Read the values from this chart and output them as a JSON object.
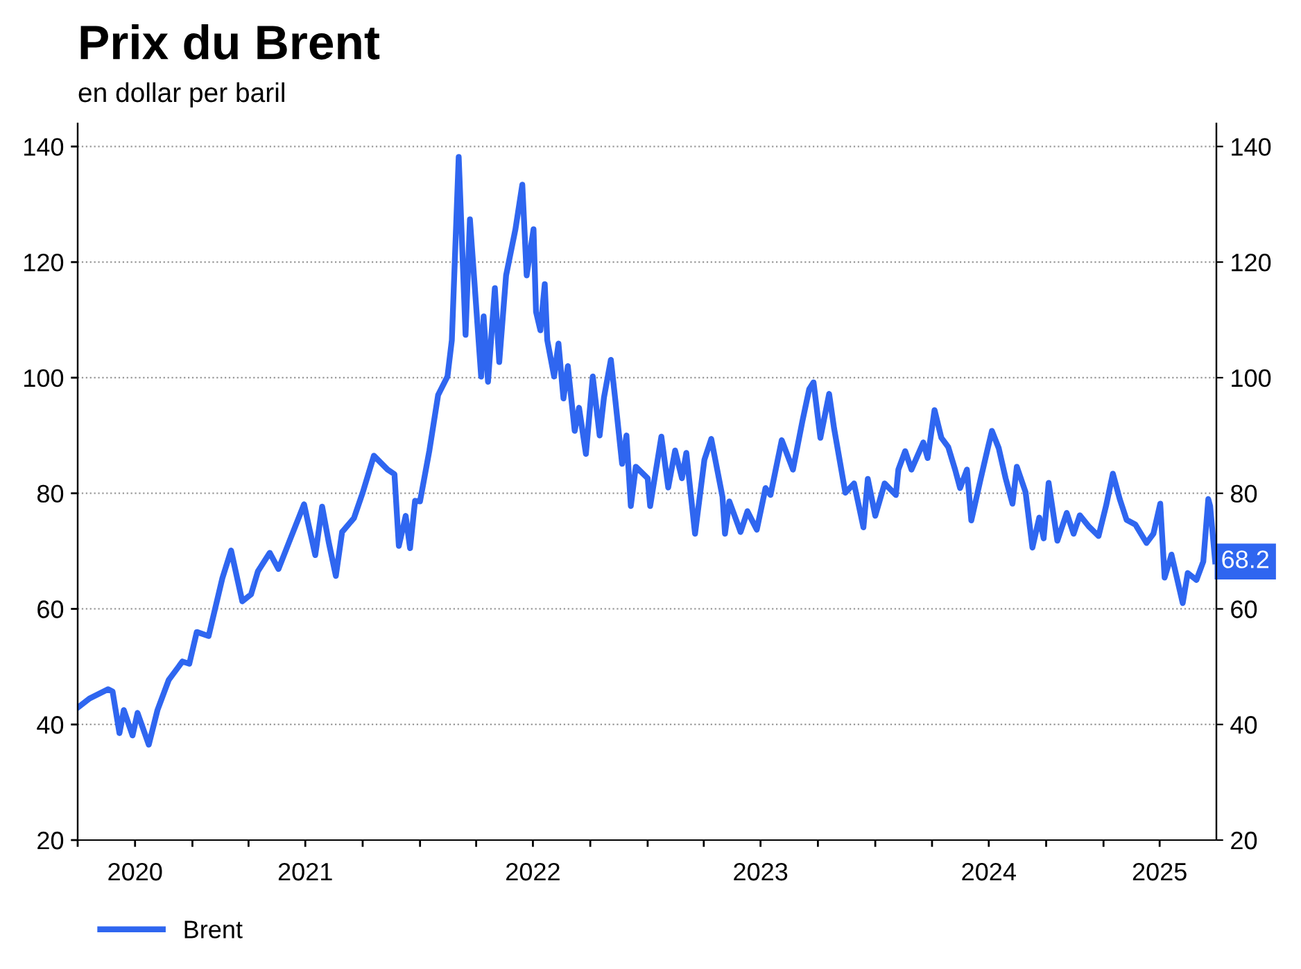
{
  "chart_data": {
    "type": "line",
    "title": "Prix du Brent",
    "subtitle": "en dollar per baril",
    "x": [
      "2020-07-01",
      "2020-07-20",
      "2020-08-19",
      "2020-08-26",
      "2020-09-06",
      "2020-09-13",
      "2020-09-27",
      "2020-10-05",
      "2020-10-23",
      "2020-11-06",
      "2020-11-24",
      "2020-12-16",
      "2020-12-27",
      "2021-01-08",
      "2021-01-27",
      "2021-02-18",
      "2021-03-04",
      "2021-03-22",
      "2021-04-05",
      "2021-04-16",
      "2021-05-05",
      "2021-05-19",
      "2021-06-07",
      "2021-06-29",
      "2021-07-17",
      "2021-07-28",
      "2021-08-08",
      "2021-08-19",
      "2021-08-29",
      "2021-09-17",
      "2021-10-01",
      "2021-10-19",
      "2021-11-10",
      "2021-11-21",
      "2021-11-28",
      "2021-12-09",
      "2021-12-16",
      "2021-12-24",
      "2022-01-01",
      "2022-01-16",
      "2022-01-30",
      "2022-02-14",
      "2022-02-21",
      "2022-03-04",
      "2022-03-15",
      "2022-03-22",
      "2022-03-29",
      "2022-04-09",
      "2022-04-13",
      "2022-04-20",
      "2022-05-01",
      "2022-05-08",
      "2022-05-19",
      "2022-06-03",
      "2022-06-14",
      "2022-06-21",
      "2022-07-02",
      "2022-07-06",
      "2022-07-13",
      "2022-07-20",
      "2022-07-24",
      "2022-08-04",
      "2022-08-11",
      "2022-08-19",
      "2022-08-26",
      "2022-09-06",
      "2022-09-13",
      "2022-09-24",
      "2022-10-05",
      "2022-10-16",
      "2022-10-23",
      "2022-11-03",
      "2022-11-10",
      "2022-11-21",
      "2022-11-28",
      "2022-12-05",
      "2022-12-13",
      "2023-01-01",
      "2023-01-05",
      "2023-01-23",
      "2023-02-03",
      "2023-02-14",
      "2023-02-25",
      "2023-03-04",
      "2023-03-18",
      "2023-04-02",
      "2023-04-13",
      "2023-05-01",
      "2023-05-05",
      "2023-05-12",
      "2023-05-30",
      "2023-06-10",
      "2023-06-25",
      "2023-07-09",
      "2023-07-17",
      "2023-08-04",
      "2023-08-22",
      "2023-09-06",
      "2023-09-17",
      "2023-09-24",
      "2023-10-05",
      "2023-10-19",
      "2023-10-27",
      "2023-11-14",
      "2023-11-28",
      "2023-12-13",
      "2023-12-20",
      "2024-01-01",
      "2024-01-16",
      "2024-02-03",
      "2024-02-07",
      "2024-02-18",
      "2024-02-28",
      "2024-03-18",
      "2024-03-25",
      "2024-04-05",
      "2024-04-16",
      "2024-04-27",
      "2024-05-08",
      "2024-05-16",
      "2024-05-27",
      "2024-06-03",
      "2024-06-18",
      "2024-06-29",
      "2024-07-06",
      "2024-07-17",
      "2024-07-28",
      "2024-08-08",
      "2024-08-15",
      "2024-08-29",
      "2024-09-09",
      "2024-09-20",
      "2024-09-27",
      "2024-10-05",
      "2024-10-19",
      "2024-11-03",
      "2024-11-14",
      "2024-11-24",
      "2024-12-09",
      "2024-12-24",
      "2025-01-05",
      "2025-01-16",
      "2025-01-27",
      "2025-02-07",
      "2025-02-21",
      "2025-03-11",
      "2025-03-22",
      "2025-04-02",
      "2025-04-09",
      "2025-04-20",
      "2025-05-08",
      "2025-05-16",
      "2025-05-30",
      "2025-06-10",
      "2025-06-18",
      "2025-06-21",
      "2025-06-29"
    ],
    "series": [
      {
        "name": "Brent",
        "color": "#2f66f0",
        "values": [
          42.9,
          44.5,
          46.1,
          45.7,
          38.5,
          42.5,
          38.1,
          42,
          36.5,
          42.5,
          47.7,
          50.9,
          50.5,
          56,
          55.3,
          65.3,
          70.1,
          61.3,
          62.5,
          66.5,
          69.7,
          66.9,
          72.1,
          78.1,
          69.3,
          77.7,
          71.3,
          65.7,
          73.3,
          75.7,
          80.1,
          86.5,
          84.1,
          83.3,
          70.9,
          76.1,
          70.5,
          78.7,
          78.6,
          87.4,
          97,
          100.2,
          106.5,
          138.2,
          107.4,
          127.4,
          116.9,
          100.2,
          110.6,
          99.3,
          115.5,
          102.7,
          117.7,
          125.7,
          133.4,
          117.7,
          125.7,
          111.4,
          108.2,
          116.2,
          106.5,
          100.2,
          105.9,
          96.4,
          102,
          90.8,
          94.8,
          86.8,
          100.2,
          90,
          96.6,
          103.1,
          96.3,
          85.1,
          90,
          77.8,
          84.6,
          82.6,
          77.8,
          89.8,
          81,
          87.4,
          82.6,
          87,
          73,
          85.8,
          89.4,
          79.4,
          73,
          78.6,
          73.3,
          76.9,
          73.7,
          80.9,
          79.7,
          89.2,
          84.1,
          92.4,
          98,
          99.2,
          89.6,
          97.2,
          91.2,
          80.1,
          81.7,
          74.1,
          82.5,
          76.1,
          81.7,
          79.7,
          84.1,
          87.3,
          84.1,
          88.8,
          86.1,
          94.4,
          89.6,
          88,
          84.1,
          80.9,
          84.1,
          75.3,
          82.5,
          87.6,
          90.8,
          87.8,
          82.6,
          78.2,
          84.6,
          80.2,
          70.6,
          75.8,
          72.2,
          81.8,
          71.8,
          76.6,
          73,
          76.2,
          74.2,
          72.6,
          77.8,
          83.4,
          79,
          75.4,
          74.6,
          71.4,
          73,
          78.2,
          65.4,
          69.4,
          61,
          66.2,
          65,
          68.2,
          79,
          77.8,
          68.2
        ]
      }
    ],
    "xlim": [
      "2020-07-01",
      "2025-07-01"
    ],
    "xticks": [
      {
        "value": "2020-07-01",
        "label": null
      },
      {
        "value": "2020-10-01",
        "label": "2020"
      },
      {
        "value": "2021-01-01",
        "label": null
      },
      {
        "value": "2021-04-01",
        "label": null
      },
      {
        "value": "2021-07-01",
        "label": "2021"
      },
      {
        "value": "2021-10-01",
        "label": null
      },
      {
        "value": "2022-01-01",
        "label": null
      },
      {
        "value": "2022-04-01",
        "label": null
      },
      {
        "value": "2022-07-01",
        "label": "2022"
      },
      {
        "value": "2022-10-01",
        "label": null
      },
      {
        "value": "2023-01-01",
        "label": null
      },
      {
        "value": "2023-04-01",
        "label": null
      },
      {
        "value": "2023-07-01",
        "label": "2023"
      },
      {
        "value": "2023-10-01",
        "label": null
      },
      {
        "value": "2024-01-01",
        "label": null
      },
      {
        "value": "2024-04-01",
        "label": null
      },
      {
        "value": "2024-07-01",
        "label": "2024"
      },
      {
        "value": "2024-10-01",
        "label": null
      },
      {
        "value": "2025-01-01",
        "label": null
      },
      {
        "value": "2025-04-01",
        "label": "2025"
      }
    ],
    "ylim": [
      20,
      144
    ],
    "yticks": [
      20,
      40,
      60,
      80,
      100,
      120,
      140
    ],
    "y2lim": [
      20,
      144
    ],
    "y2ticks": [
      20,
      40,
      60,
      80,
      100,
      120,
      140
    ],
    "annotations": [
      {
        "text": "68.2",
        "x": "2025-06-29",
        "y": 68.2
      }
    ],
    "grid": "y",
    "legend": "bottom left",
    "marker": "none",
    "line_style": "solid"
  }
}
